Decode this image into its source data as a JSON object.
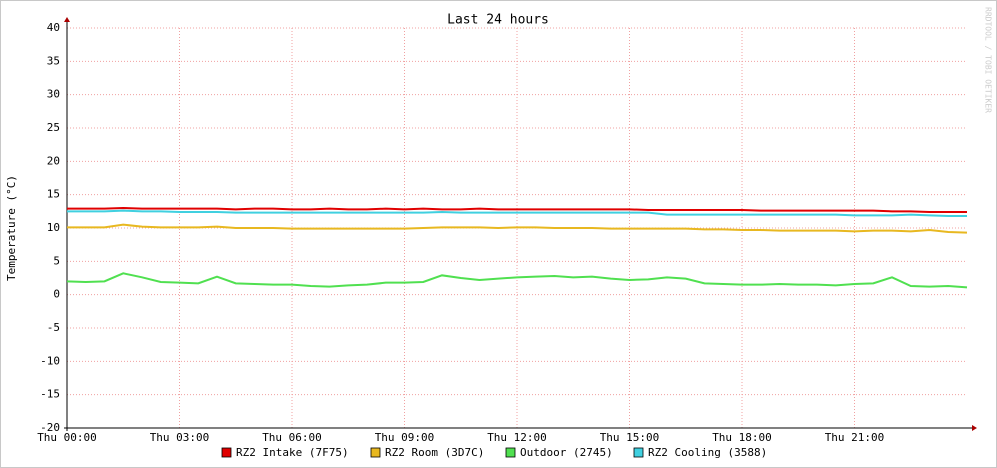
{
  "chart_data": {
    "type": "line",
    "title": "Last 24 hours",
    "ylabel": "Temperature (°C)",
    "watermark": "RRDTOOL / TOBI OETIKER",
    "x": [
      0,
      0.5,
      1,
      1.5,
      2,
      2.5,
      3,
      3.5,
      4,
      4.5,
      5,
      5.5,
      6,
      6.5,
      7,
      7.5,
      8,
      8.5,
      9,
      9.5,
      10,
      10.5,
      11,
      11.5,
      12,
      12.5,
      13,
      13.5,
      14,
      14.5,
      15,
      15.5,
      16,
      16.5,
      17,
      17.5,
      18,
      18.5,
      19,
      19.5,
      20,
      20.5,
      21,
      21.5,
      22,
      22.5,
      23,
      23.5,
      24
    ],
    "xlim": [
      0,
      24
    ],
    "xticks": [
      {
        "value": 0,
        "label": "Thu 00:00"
      },
      {
        "value": 3,
        "label": "Thu 03:00"
      },
      {
        "value": 6,
        "label": "Thu 06:00"
      },
      {
        "value": 9,
        "label": "Thu 09:00"
      },
      {
        "value": 12,
        "label": "Thu 12:00"
      },
      {
        "value": 15,
        "label": "Thu 15:00"
      },
      {
        "value": 18,
        "label": "Thu 18:00"
      },
      {
        "value": 21,
        "label": "Thu 21:00"
      }
    ],
    "ylim": [
      -20,
      40
    ],
    "yticks": [
      -20,
      -15,
      -10,
      -5,
      0,
      5,
      10,
      15,
      20,
      25,
      30,
      35,
      40
    ],
    "grid": true,
    "series": [
      {
        "name": "RZ2 Intake (7F75)",
        "color": "#e00000",
        "values": [
          12.9,
          12.9,
          12.9,
          13.0,
          12.9,
          12.9,
          12.9,
          12.9,
          12.9,
          12.8,
          12.9,
          12.9,
          12.8,
          12.8,
          12.9,
          12.8,
          12.8,
          12.9,
          12.8,
          12.9,
          12.8,
          12.8,
          12.9,
          12.8,
          12.8,
          12.8,
          12.8,
          12.8,
          12.8,
          12.8,
          12.8,
          12.7,
          12.7,
          12.7,
          12.7,
          12.7,
          12.7,
          12.6,
          12.6,
          12.6,
          12.6,
          12.6,
          12.6,
          12.6,
          12.5,
          12.5,
          12.4,
          12.4,
          12.4
        ]
      },
      {
        "name": "RZ2 Room (3D7C)",
        "color": "#e8b820",
        "values": [
          10.1,
          10.1,
          10.1,
          10.5,
          10.2,
          10.1,
          10.1,
          10.1,
          10.2,
          10.0,
          10.0,
          10.0,
          9.9,
          9.9,
          9.9,
          9.9,
          9.9,
          9.9,
          9.9,
          10.0,
          10.1,
          10.1,
          10.1,
          10.0,
          10.1,
          10.1,
          10.0,
          10.0,
          10.0,
          9.9,
          9.9,
          9.9,
          9.9,
          9.9,
          9.8,
          9.8,
          9.7,
          9.7,
          9.6,
          9.6,
          9.6,
          9.6,
          9.5,
          9.6,
          9.6,
          9.5,
          9.7,
          9.4,
          9.3
        ]
      },
      {
        "name": "Outdoor (2745)",
        "color": "#50e050",
        "values": [
          2.0,
          1.9,
          2.0,
          3.2,
          2.6,
          1.9,
          1.8,
          1.7,
          2.7,
          1.7,
          1.6,
          1.5,
          1.5,
          1.3,
          1.2,
          1.4,
          1.5,
          1.8,
          1.8,
          1.9,
          2.9,
          2.5,
          2.2,
          2.4,
          2.6,
          2.7,
          2.8,
          2.6,
          2.7,
          2.4,
          2.2,
          2.3,
          2.6,
          2.4,
          1.7,
          1.6,
          1.5,
          1.5,
          1.6,
          1.5,
          1.5,
          1.4,
          1.6,
          1.7,
          2.6,
          1.3,
          1.2,
          1.3,
          1.1
        ]
      },
      {
        "name": "RZ2 Cooling (3588)",
        "color": "#40d0e0",
        "values": [
          12.5,
          12.5,
          12.5,
          12.6,
          12.5,
          12.5,
          12.4,
          12.4,
          12.4,
          12.3,
          12.3,
          12.3,
          12.3,
          12.3,
          12.3,
          12.3,
          12.3,
          12.3,
          12.3,
          12.3,
          12.4,
          12.3,
          12.3,
          12.3,
          12.3,
          12.3,
          12.3,
          12.3,
          12.3,
          12.3,
          12.3,
          12.3,
          12.0,
          12.0,
          12.0,
          12.0,
          12.0,
          12.0,
          12.0,
          12.0,
          12.0,
          12.0,
          11.9,
          11.9,
          11.9,
          12.0,
          11.9,
          11.8,
          11.8
        ]
      }
    ]
  }
}
